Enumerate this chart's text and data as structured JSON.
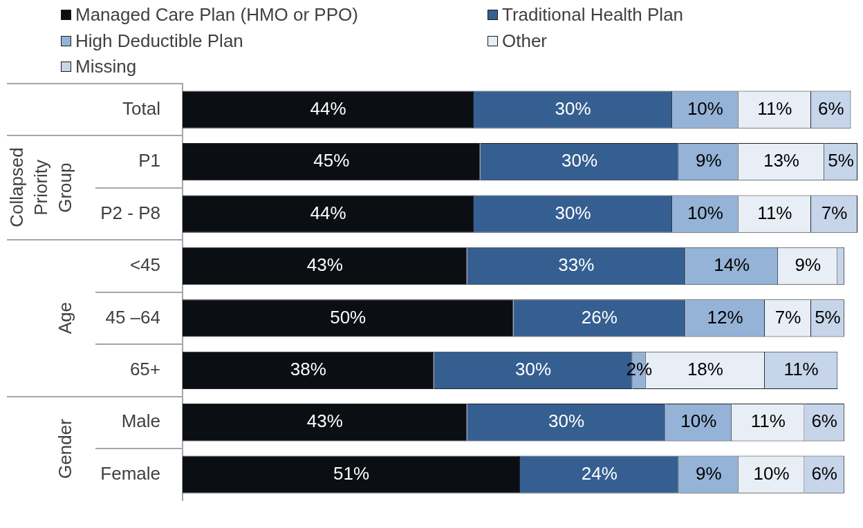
{
  "chart_data": {
    "type": "bar",
    "orientation": "horizontal",
    "stacked": true,
    "legend": "top left",
    "categories": [
      "Total",
      "P1",
      "P2 - P8",
      "<45",
      "45 –64",
      "65+",
      "Male",
      "Female"
    ],
    "series": [
      {
        "name": "Managed Care Plan (HMO or PPO)",
        "color": "#0b0f14",
        "values": [
          44,
          45,
          44,
          43,
          50,
          38,
          43,
          51
        ],
        "value_labels": [
          "44%",
          "45%",
          "44%",
          "43%",
          "50%",
          "38%",
          "43%",
          "51%"
        ]
      },
      {
        "name": "Traditional Health Plan",
        "color": "#365f91",
        "values": [
          30,
          30,
          30,
          33,
          26,
          30,
          30,
          24
        ],
        "value_labels": [
          "30%",
          "30%",
          "30%",
          "33%",
          "26%",
          "30%",
          "30%",
          "24%"
        ]
      },
      {
        "name": "High Deductible Plan",
        "color": "#95b3d7",
        "values": [
          10,
          9,
          10,
          14,
          12,
          2,
          10,
          9
        ],
        "value_labels": [
          "10%",
          "9%",
          "10%",
          "14%",
          "12%",
          "2%",
          "10%",
          "9%"
        ]
      },
      {
        "name": "Other",
        "color": "#e8eef6",
        "values": [
          11,
          13,
          11,
          9,
          7,
          18,
          11,
          10
        ],
        "value_labels": [
          "11%",
          "13%",
          "11%",
          "9%",
          "7%",
          "18%",
          "11%",
          "10%"
        ]
      },
      {
        "name": "Missing",
        "color": "#c6d5ea",
        "values": [
          6,
          5,
          7,
          1,
          5,
          11,
          6,
          6
        ],
        "value_labels": [
          "6%",
          "5%",
          "7%",
          null,
          "5%",
          "11%",
          "6%",
          "6%"
        ]
      }
    ],
    "annotations": [
      "Collapsed Priority Group",
      "Age",
      "Gender"
    ]
  }
}
